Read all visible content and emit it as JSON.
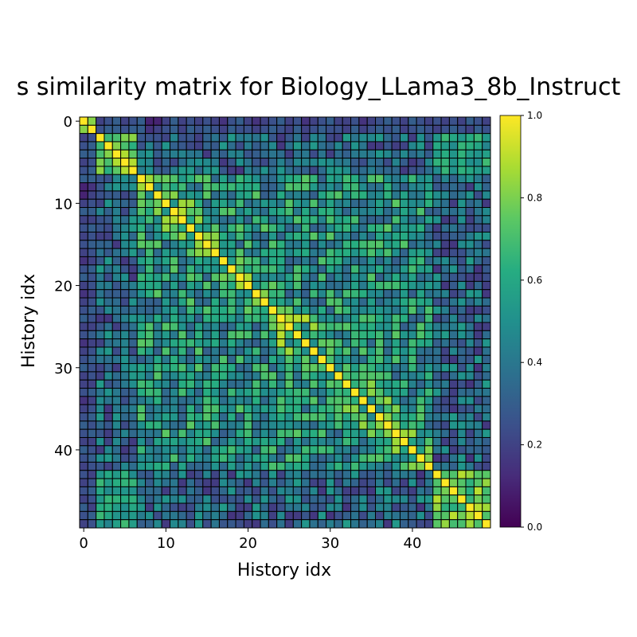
{
  "chart_data": {
    "type": "heatmap",
    "title": "s similarity matrix for Biology_LLama3_8b_Instruct",
    "xlabel": "History idx",
    "ylabel": "History idx",
    "n": 50,
    "x_ticks": [
      "0",
      "10",
      "20",
      "30",
      "40"
    ],
    "y_ticks": [
      "0",
      "10",
      "20",
      "30",
      "40"
    ],
    "x_tick_values": [
      0,
      10,
      20,
      30,
      40
    ],
    "y_tick_values": [
      0,
      10,
      20,
      30,
      40
    ],
    "colorbar": {
      "range": [
        0.0,
        1.0
      ],
      "ticks": [
        "0.0",
        "0.2",
        "0.4",
        "0.6",
        "0.8",
        "1.0"
      ],
      "tick_values": [
        0.0,
        0.2,
        0.4,
        0.6,
        0.8,
        1.0
      ]
    },
    "colormap": "viridis",
    "grid": true,
    "grid_color": "#000000",
    "seed_rows": [
      [
        1.0,
        0.82,
        0.2,
        0.25,
        0.3,
        0.2,
        0.25,
        0.3,
        0.1,
        0.1,
        0.2,
        0.3,
        0.2,
        0.25,
        0.2,
        0.25,
        0.2,
        0.15,
        0.25,
        0.3,
        0.2,
        0.15,
        0.2,
        0.25,
        0.3,
        0.2,
        0.25,
        0.15,
        0.2,
        0.25,
        0.3,
        0.2,
        0.2,
        0.25,
        0.15,
        0.2,
        0.25,
        0.3,
        0.25,
        0.2,
        0.3,
        0.25,
        0.2,
        0.25,
        0.2,
        0.25,
        0.2,
        0.3,
        0.25,
        0.2
      ],
      [
        0.82,
        1.0,
        0.25,
        0.3,
        0.3,
        0.25,
        0.3,
        0.3,
        0.15,
        0.2,
        0.25,
        0.3,
        0.2,
        0.3,
        0.25,
        0.3,
        0.25,
        0.2,
        0.3,
        0.25,
        0.25,
        0.2,
        0.25,
        0.3,
        0.25,
        0.2,
        0.3,
        0.2,
        0.25,
        0.3,
        0.25,
        0.25,
        0.2,
        0.3,
        0.2,
        0.25,
        0.3,
        0.25,
        0.3,
        0.2,
        0.25,
        0.3,
        0.25,
        0.2,
        0.25,
        0.3,
        0.25,
        0.2,
        0.3,
        0.25
      ]
    ]
  }
}
